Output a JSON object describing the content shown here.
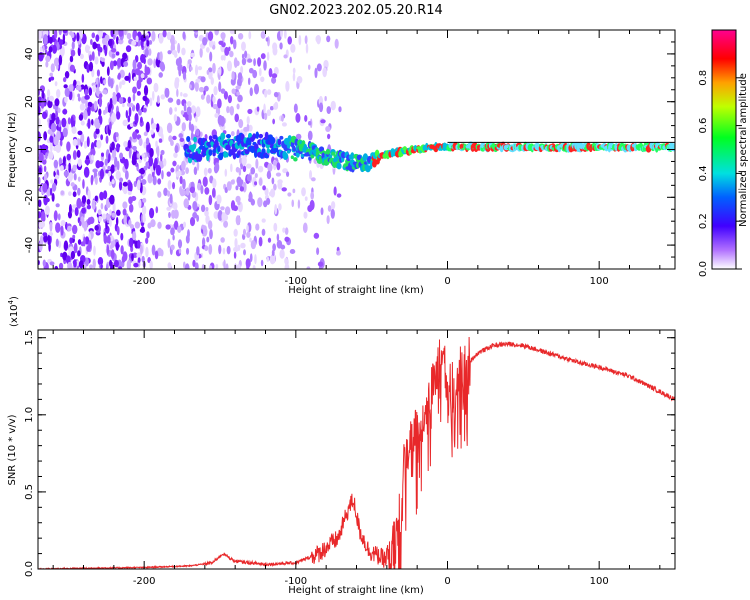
{
  "title": "GN02.2023.202.05.20.R14",
  "colors": {
    "snr_line": "#e8282a",
    "colormap": [
      "#ffffff",
      "#8a2be2",
      "#0000ff",
      "#00ffff",
      "#00ff00",
      "#ffff00",
      "#ff0000",
      "#ff0080"
    ]
  },
  "chart_data": [
    {
      "type": "heatmap",
      "xlabel": "Height of straight line (km)",
      "ylabel": "Frequency (Hz)",
      "xlim": [
        -270,
        150
      ],
      "ylim": [
        -50,
        50
      ],
      "x_ticks": [
        -200,
        -100,
        0,
        100
      ],
      "x_tick_labels": [
        "-200",
        "-100",
        "0",
        "100"
      ],
      "y_ticks": [
        -40,
        -20,
        0,
        20,
        40
      ],
      "y_tick_labels": [
        "-40",
        "-20",
        "0",
        "20",
        "40"
      ],
      "colorbar": {
        "label": "Normalized spectral amplitude",
        "range": [
          0,
          1
        ],
        "ticks": [
          0.0,
          0.2,
          0.4,
          0.6,
          0.8
        ],
        "tick_labels": [
          "0.0",
          "0.2",
          "0.4",
          "0.6",
          "0.8"
        ]
      },
      "signal_track": {
        "x": [
          -170,
          -150,
          -130,
          -110,
          -95,
          -80,
          -65,
          -55,
          -48,
          -40,
          -30,
          -20,
          -10,
          0,
          20,
          50,
          80,
          110,
          150
        ],
        "frequency": [
          0,
          1,
          2,
          1,
          0,
          -3,
          -5,
          -6,
          -4,
          -2,
          -1,
          0,
          1,
          1,
          1,
          1,
          1,
          1,
          1
        ]
      }
    },
    {
      "type": "line",
      "xlabel": "Height of straight line (km)",
      "ylabel": "SNR (10 * v/v)",
      "y_multiplier_label": "(x10",
      "y_multiplier_exp": "4",
      "xlim": [
        -270,
        150
      ],
      "ylim": [
        0,
        1.55
      ],
      "x_ticks": [
        -200,
        -100,
        0,
        100
      ],
      "x_tick_labels": [
        "-200",
        "-100",
        "0",
        "100"
      ],
      "y_ticks": [
        0.0,
        0.5,
        1.0,
        1.5
      ],
      "y_tick_labels": [
        "0.0",
        "0.5",
        "1.0",
        "1.5"
      ],
      "series": [
        {
          "x": [
            -270,
            -240,
            -200,
            -170,
            -155,
            -148,
            -140,
            -120,
            -100,
            -85,
            -72,
            -65,
            -62,
            -58,
            -52,
            -45,
            -38,
            -32,
            -28,
            -24,
            -20,
            -15,
            -10,
            -6,
            -3,
            0,
            5,
            10,
            20,
            30,
            40,
            50,
            60,
            70,
            80,
            90,
            100,
            110,
            120,
            130,
            140,
            150
          ],
          "y": [
            0.0,
            0.005,
            0.01,
            0.02,
            0.04,
            0.1,
            0.05,
            0.03,
            0.04,
            0.1,
            0.2,
            0.4,
            0.45,
            0.25,
            0.12,
            0.08,
            0.05,
            0.3,
            0.75,
            0.85,
            0.9,
            1.05,
            1.15,
            1.35,
            1.5,
            1.15,
            1.2,
            1.3,
            1.4,
            1.45,
            1.46,
            1.45,
            1.42,
            1.39,
            1.36,
            1.33,
            1.31,
            1.28,
            1.25,
            1.2,
            1.15,
            1.1
          ]
        }
      ]
    }
  ]
}
